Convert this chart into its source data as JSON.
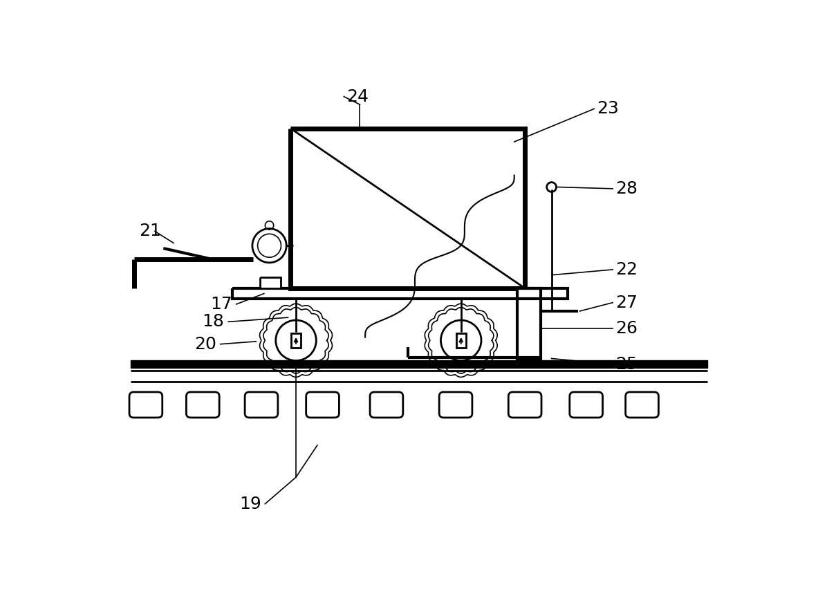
{
  "bg_color": "#ffffff",
  "lw1": 1.2,
  "lw2": 2.0,
  "lw3": 3.0,
  "lw4": 5.0,
  "fs": 18
}
